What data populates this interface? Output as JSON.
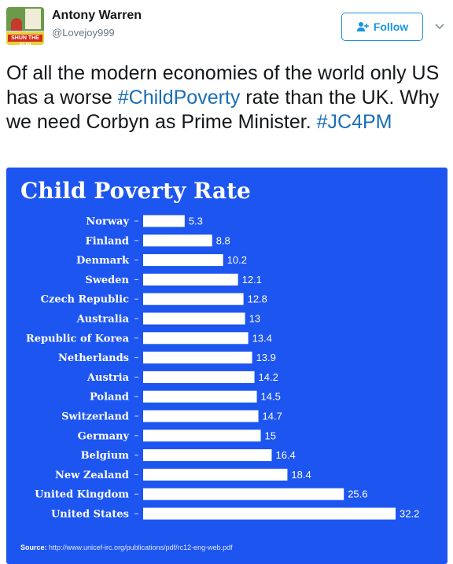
{
  "tweet": {
    "author_name": "Antony Warren",
    "author_handle": "@Lovejoy999",
    "avatar_caption": "SHUN THE SUN",
    "follow_label": "Follow",
    "text_parts": [
      "Of all the modern economies of the world only US has a worse ",
      "#ChildPoverty",
      " rate than the UK. Why we need Corbyn as Prime Minister. ",
      "#JC4PM"
    ],
    "accent_color": "#1b95e0",
    "hashtag_color": "#1b6db5"
  },
  "chart_card": {
    "background_color": "#1d55f0",
    "source_label": "Source:",
    "source_url": "http://www.unicef-irc.org/publications/pdf/rc12-eng-web.pdf"
  },
  "chart_data": {
    "type": "bar",
    "orientation": "horizontal",
    "title": "Child Poverty Rate",
    "categories": [
      "Norway",
      "Finland",
      "Denmark",
      "Sweden",
      "Czech Republic",
      "Australia",
      "Republic of Korea",
      "Netherlands",
      "Austria",
      "Poland",
      "Switzerland",
      "Germany",
      "Belgium",
      "New Zealand",
      "United Kingdom",
      "United States"
    ],
    "values": [
      5.3,
      8.8,
      10.2,
      12.1,
      12.8,
      13,
      13.4,
      13.9,
      14.2,
      14.5,
      14.7,
      15,
      16.4,
      18.4,
      25.6,
      32.2
    ],
    "value_labels": [
      "5.3",
      "8.8",
      "10.2",
      "12.1",
      "12.8",
      "13",
      "13.4",
      "13.9",
      "14.2",
      "14.5",
      "14.7",
      "15",
      "16.4",
      "18.4",
      "25.6",
      "32.2"
    ],
    "xlim": [
      0,
      32.2
    ],
    "bar_color": "#ffffff",
    "grid": false,
    "legend": "none"
  }
}
